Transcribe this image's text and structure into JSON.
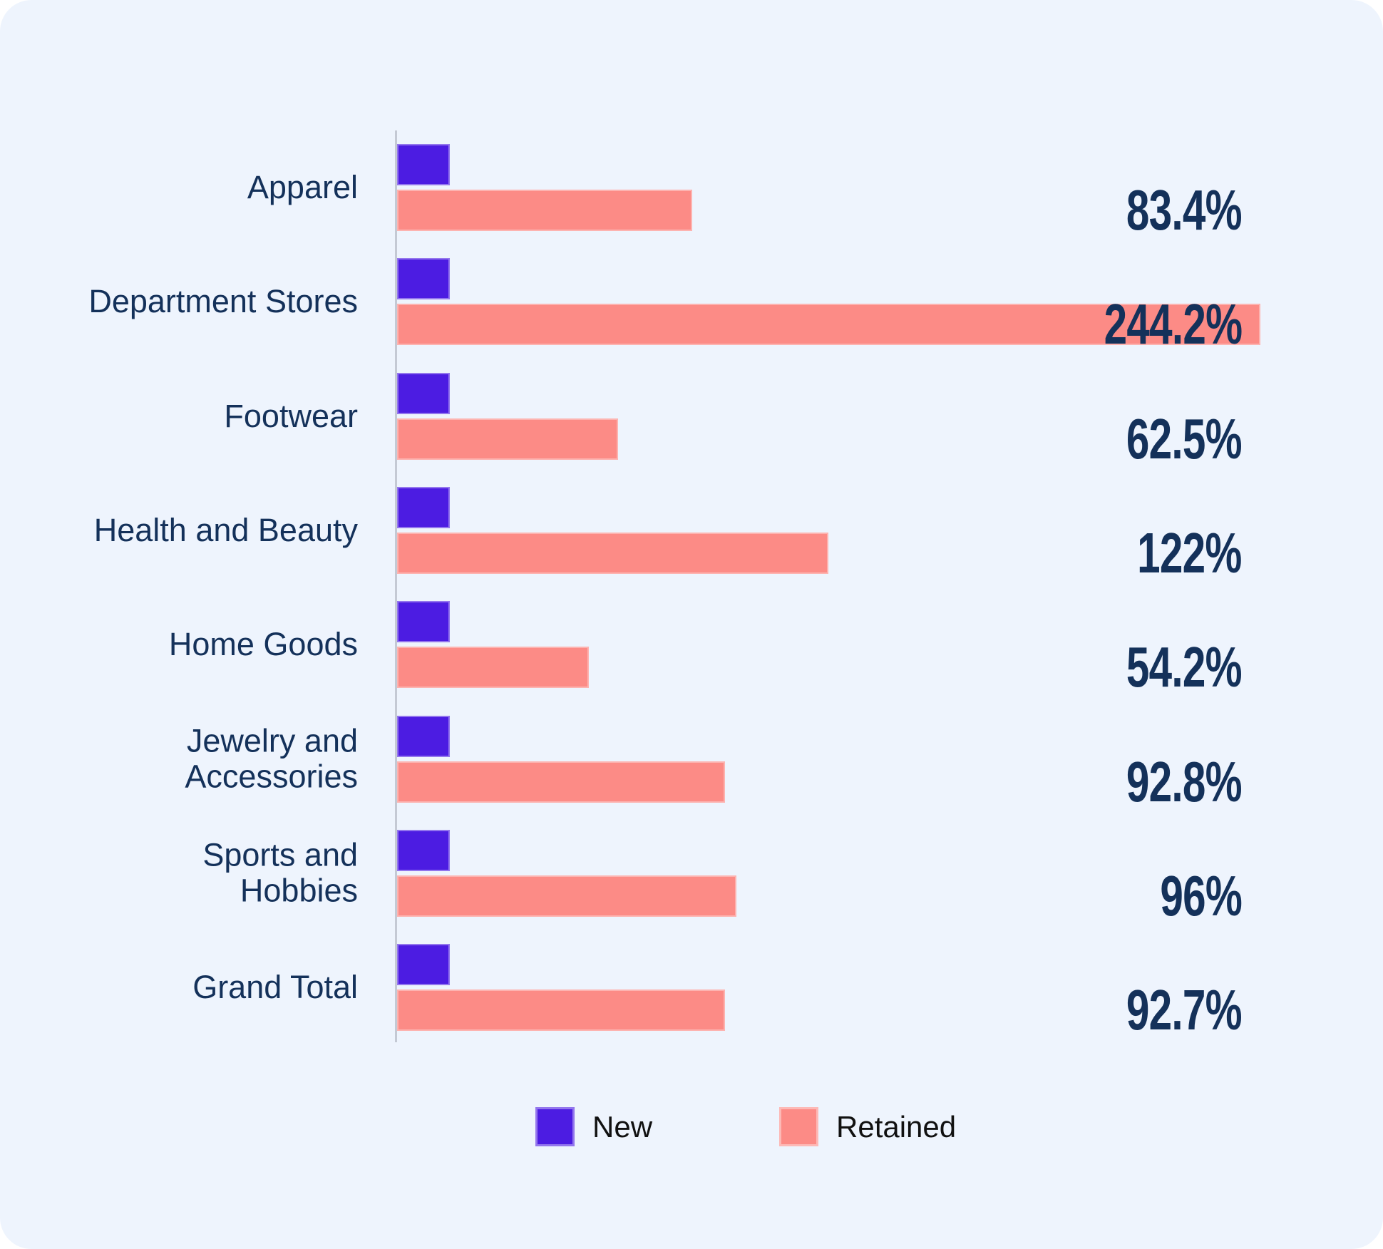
{
  "chart_data": {
    "type": "bar",
    "orientation": "horizontal",
    "title": "",
    "categories": [
      "Apparel",
      "Department Stores",
      "Footwear",
      "Health and Beauty",
      "Home Goods",
      "Jewelry and\nAccessories",
      "Sports and\nHobbies",
      "Grand Total"
    ],
    "series": [
      {
        "name": "New",
        "color": "#4C1CE2",
        "values": [
          15,
          15,
          15,
          15,
          15,
          15,
          15,
          15
        ],
        "values_estimated": true
      },
      {
        "name": "Retained",
        "color": "#FC8B86",
        "values": [
          83.4,
          244.2,
          62.5,
          122,
          54.2,
          92.8,
          96,
          92.7
        ],
        "labels": [
          "83.4%",
          "244.2%",
          "62.5%",
          "122%",
          "54.2%",
          "92.8%",
          "96%",
          "92.7%"
        ]
      }
    ],
    "xlim": [
      0,
      244.2
    ],
    "grid": "off",
    "legend_position": "bottom",
    "value_labels": "right-aligned, one per Retained bar"
  },
  "legend": {
    "items": [
      {
        "label": "New",
        "color": "#4C1CE2"
      },
      {
        "label": "Retained",
        "color": "#FC8B86"
      }
    ]
  },
  "colors": {
    "panel_background": "#EEF4FD",
    "outer_background": "#FFFFFF",
    "axis_line": "#C4C9D4",
    "category_text": "#14315A",
    "value_text": "#14315A",
    "legend_text": "#111111"
  }
}
